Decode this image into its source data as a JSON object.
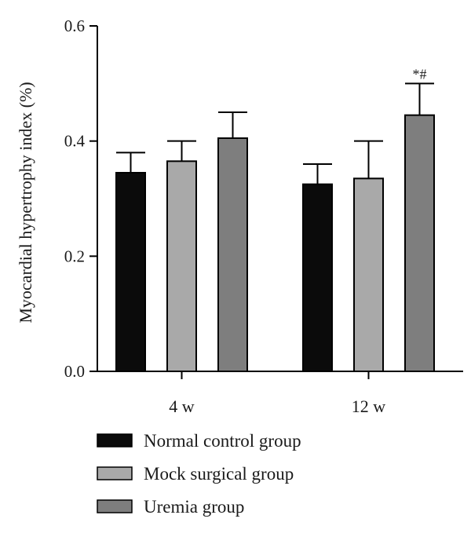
{
  "chart_data": {
    "type": "bar",
    "ylabel": "Myocardial hypertrophy index (%)",
    "xlabel": "",
    "ylim": [
      0,
      0.6
    ],
    "yticks": [
      "0.0",
      "0.2",
      "0.4",
      "0.6"
    ],
    "categories": [
      "4 w",
      "12 w"
    ],
    "series": [
      {
        "name": "Normal control group",
        "color": "#0b0b0b",
        "values": [
          0.345,
          0.325
        ],
        "errors": [
          0.035,
          0.035
        ]
      },
      {
        "name": "Mock surgical group",
        "color": "#a9a9a9",
        "values": [
          0.365,
          0.335
        ],
        "errors": [
          0.035,
          0.065
        ]
      },
      {
        "name": "Uremia group",
        "color": "#7e7e7e",
        "values": [
          0.405,
          0.445
        ],
        "errors": [
          0.045,
          0.055
        ]
      }
    ],
    "annotations": [
      {
        "category": "12 w",
        "series": "Uremia group",
        "text": "*#"
      }
    ],
    "legend_position": "bottom"
  }
}
